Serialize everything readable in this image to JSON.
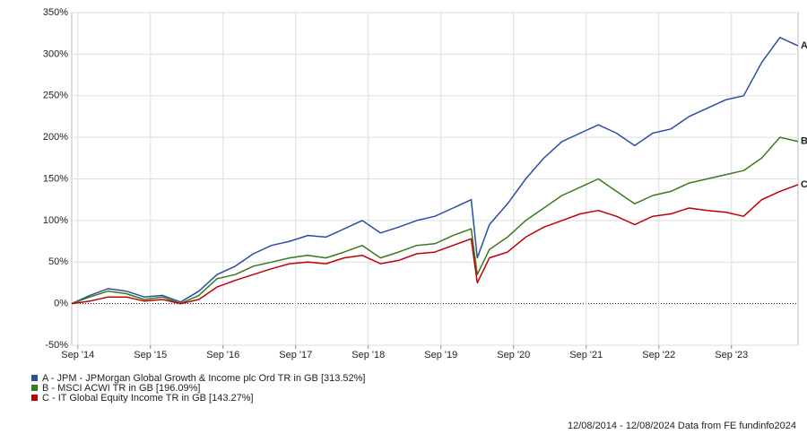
{
  "chart_data": {
    "type": "line",
    "x": [
      "2014-08",
      "2014-11",
      "2015-02",
      "2015-05",
      "2015-08",
      "2015-11",
      "2016-02",
      "2016-05",
      "2016-08",
      "2016-11",
      "2017-02",
      "2017-05",
      "2017-08",
      "2017-11",
      "2018-02",
      "2018-05",
      "2018-08",
      "2018-11",
      "2019-02",
      "2019-05",
      "2019-08",
      "2019-11",
      "2020-02",
      "2020-03",
      "2020-05",
      "2020-08",
      "2020-11",
      "2021-02",
      "2021-05",
      "2021-08",
      "2021-11",
      "2022-02",
      "2022-05",
      "2022-08",
      "2022-11",
      "2023-02",
      "2023-05",
      "2023-08",
      "2023-11",
      "2024-02",
      "2024-05",
      "2024-08"
    ],
    "series": [
      {
        "name": "A - JPM - JPMorgan Global Growth & Income plc Ord TR in GB [313.52%]",
        "tag": "A",
        "color": "#2b4ea2",
        "values": [
          0,
          10,
          18,
          15,
          8,
          10,
          2,
          15,
          35,
          45,
          60,
          70,
          75,
          82,
          80,
          90,
          100,
          85,
          92,
          100,
          105,
          115,
          125,
          55,
          95,
          120,
          150,
          175,
          195,
          205,
          215,
          205,
          190,
          205,
          210,
          225,
          235,
          245,
          250,
          290,
          320,
          310
        ]
      },
      {
        "name": "B - MSCI ACWI TR in GB [196.09%]",
        "tag": "B",
        "color": "#3a7a1c",
        "values": [
          0,
          8,
          15,
          12,
          5,
          8,
          0,
          10,
          30,
          35,
          45,
          50,
          55,
          58,
          55,
          62,
          70,
          55,
          62,
          70,
          72,
          82,
          90,
          35,
          65,
          80,
          100,
          115,
          130,
          140,
          150,
          135,
          120,
          130,
          135,
          145,
          150,
          155,
          160,
          175,
          200,
          195
        ]
      },
      {
        "name": "C - IT Global Equity Income TR in GB [143.27%]",
        "tag": "C",
        "color": "#c00000",
        "values": [
          0,
          3,
          8,
          8,
          3,
          5,
          0,
          5,
          20,
          28,
          35,
          42,
          48,
          50,
          48,
          55,
          58,
          48,
          52,
          60,
          62,
          70,
          78,
          25,
          55,
          62,
          80,
          92,
          100,
          108,
          112,
          105,
          95,
          105,
          108,
          115,
          112,
          110,
          105,
          125,
          135,
          143
        ]
      }
    ],
    "xlim": [
      "2014-08",
      "2024-08"
    ],
    "xticks": [
      {
        "value": "2014-09",
        "label": "Sep '14"
      },
      {
        "value": "2015-09",
        "label": "Sep '15"
      },
      {
        "value": "2016-09",
        "label": "Sep '16"
      },
      {
        "value": "2017-09",
        "label": "Sep '17"
      },
      {
        "value": "2018-09",
        "label": "Sep '18"
      },
      {
        "value": "2019-09",
        "label": "Sep '19"
      },
      {
        "value": "2020-09",
        "label": "Sep '20"
      },
      {
        "value": "2021-09",
        "label": "Sep '21"
      },
      {
        "value": "2022-09",
        "label": "Sep '22"
      },
      {
        "value": "2023-09",
        "label": "Sep '23"
      }
    ],
    "ylim": [
      -50,
      350
    ],
    "yticks": [
      {
        "value": -50,
        "label": "-50%"
      },
      {
        "value": 0,
        "label": "0%"
      },
      {
        "value": 50,
        "label": "50%"
      },
      {
        "value": 100,
        "label": "100%"
      },
      {
        "value": 150,
        "label": "150%"
      },
      {
        "value": 200,
        "label": "200%"
      },
      {
        "value": 250,
        "label": "250%"
      },
      {
        "value": 300,
        "label": "300%"
      },
      {
        "value": 350,
        "label": "350%"
      }
    ],
    "grid": true,
    "footnote": "12/08/2014 - 12/08/2024 Data from FE fundinfo2024"
  }
}
